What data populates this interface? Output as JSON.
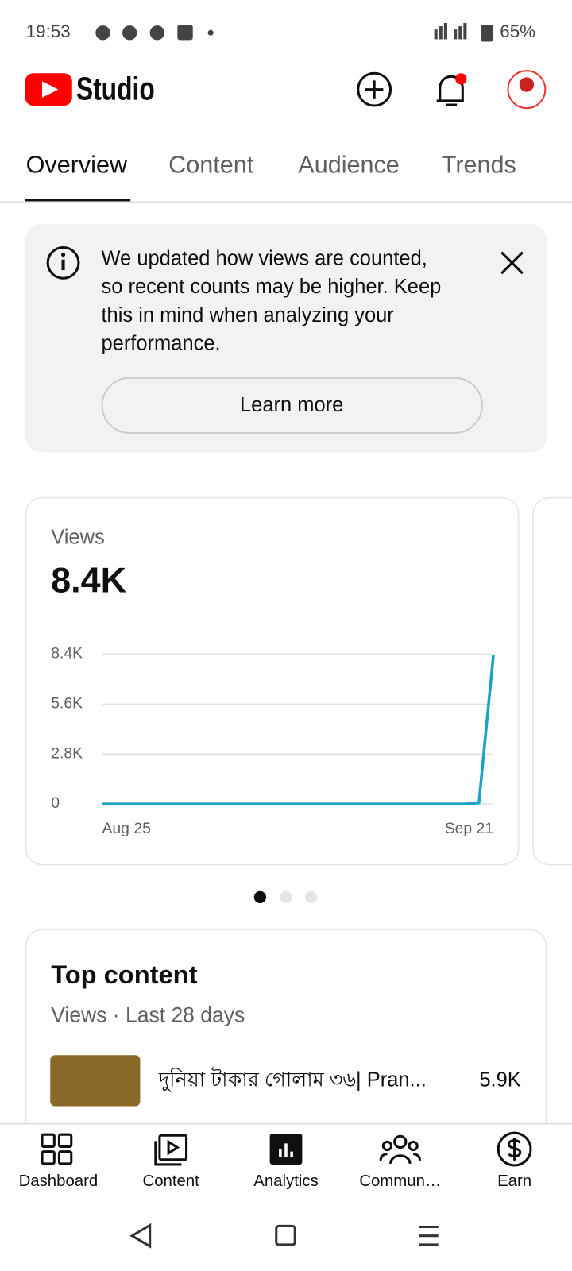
{
  "status_bar": {
    "time": "19:53",
    "battery": "65%"
  },
  "header": {
    "title": "Studio"
  },
  "tabs": [
    "Overview",
    "Content",
    "Audience",
    "Trends"
  ],
  "notice": {
    "lines": [
      "We updated how views are counted,",
      "so recent counts may be higher. Keep",
      "this in mind when analyzing your",
      "performance."
    ],
    "button": "Learn more"
  },
  "views_card": {
    "label": "Views",
    "total": "8.4K"
  },
  "chart_data": {
    "type": "line",
    "categories": [
      "Aug 25",
      null,
      null,
      null,
      null,
      null,
      null,
      null,
      null,
      null,
      null,
      null,
      null,
      null,
      null,
      null,
      null,
      null,
      null,
      null,
      null,
      null,
      null,
      null,
      null,
      null,
      null,
      "Sep 21"
    ],
    "series": [
      {
        "name": "Views",
        "color": "#1ba2c9",
        "values": [
          0,
          0,
          0,
          0,
          0,
          0,
          0,
          0,
          0,
          0,
          0,
          0,
          0,
          0,
          0,
          0,
          0,
          0,
          0,
          0,
          0,
          0,
          0,
          0,
          0,
          0,
          60,
          8350
        ]
      }
    ],
    "ylim": [
      0,
      8400
    ],
    "yticks": [
      0,
      {
        "value": 2800,
        "label": "2.8K"
      },
      {
        "value": 5600,
        "label": "5.6K"
      },
      {
        "value": 8400,
        "label": "8.4K"
      }
    ],
    "grid": true
  },
  "top_content": {
    "title": "Top content",
    "subtitle": "Views · Last 28 days",
    "items": [
      {
        "title": "দুনিয়া টাকার গোলাম ৩৬| Pran...",
        "value": "5.9K"
      }
    ]
  },
  "bottom_nav": [
    "Dashboard",
    "Content",
    "Analytics",
    "Commun…",
    "Earn"
  ]
}
